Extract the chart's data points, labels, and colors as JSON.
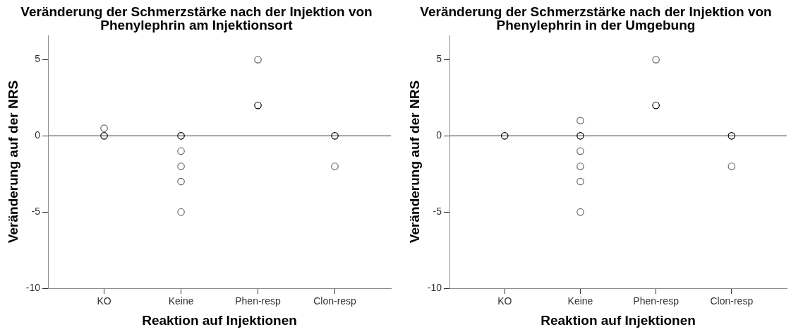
{
  "chart_data": [
    {
      "type": "scatter",
      "title": "Veränderung der Schmerzstärke nach der Injektion von Phenylephrin am Injektionsort",
      "xlabel": "Reaktion auf Injektionen",
      "ylabel": "Veränderung auf der NRS",
      "categories": [
        "KO",
        "Keine",
        "Phen-resp",
        "Clon-resp"
      ],
      "series": [
        {
          "x": [
            "KO",
            "KO",
            "Keine",
            "Keine",
            "Keine",
            "Keine",
            "Keine",
            "Phen-resp",
            "Phen-resp",
            "Clon-resp",
            "Clon-resp"
          ],
          "values": [
            0.5,
            0,
            0,
            -1,
            -2,
            -3,
            -5,
            5,
            2,
            0,
            -2
          ],
          "colors": [
            "#666666",
            "#000000",
            "#000000",
            "#666666",
            "#666666",
            "#666666",
            "#666666",
            "#666666",
            "#000000",
            "#000000",
            "#666666"
          ]
        }
      ],
      "marker": "circle",
      "ylim": [
        -10,
        6.6
      ],
      "yticks": [
        -10,
        -5,
        0,
        5
      ],
      "ref_lines": [
        {
          "axis": "y",
          "value": 0,
          "color": "#808080"
        }
      ]
    },
    {
      "type": "scatter",
      "title": "Veränderung der Schmerzstärke nach der Injektion von Phenylephrin in der Umgebung",
      "xlabel": "Reaktion auf Injektionen",
      "ylabel": "Veränderung auf der NRS",
      "categories": [
        "KO",
        "Keine",
        "Phen-resp",
        "Clon-resp"
      ],
      "series": [
        {
          "x": [
            "KO",
            "Keine",
            "Keine",
            "Keine",
            "Keine",
            "Keine",
            "Keine",
            "Phen-resp",
            "Phen-resp",
            "Clon-resp",
            "Clon-resp"
          ],
          "values": [
            0,
            1,
            0,
            -1,
            -2,
            -3,
            -5,
            5,
            2,
            0,
            -2
          ],
          "colors": [
            "#000000",
            "#666666",
            "#000000",
            "#666666",
            "#666666",
            "#666666",
            "#666666",
            "#666666",
            "#000000",
            "#000000",
            "#666666"
          ]
        }
      ],
      "marker": "circle",
      "ylim": [
        -10,
        6.6
      ],
      "yticks": [
        -10,
        -5,
        0,
        5
      ],
      "ref_lines": [
        {
          "axis": "y",
          "value": 0,
          "color": "#808080"
        }
      ]
    }
  ]
}
